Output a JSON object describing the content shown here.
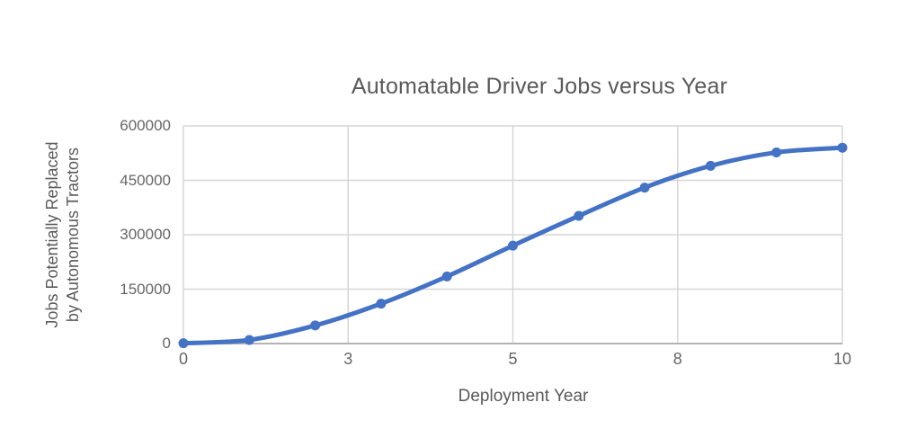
{
  "chart_data": {
    "type": "line",
    "title": "Automatable Driver Jobs versus Year",
    "xlabel": "Deployment Year",
    "ylabel_lines": [
      "Jobs Potentially Replaced",
      "by Autonomous Tractors"
    ],
    "x": [
      0,
      1,
      2,
      3,
      4,
      5,
      6,
      7,
      8,
      9,
      10
    ],
    "series": [
      {
        "name": "Jobs Potentially Replaced by Autonomous Tractors",
        "values": [
          1000,
          10000,
          50000,
          110000,
          185000,
          270000,
          352000,
          430000,
          490000,
          527000,
          540000
        ]
      }
    ],
    "xlim": [
      0,
      10
    ],
    "ylim": [
      0,
      600000
    ],
    "x_ticks": {
      "positions": [
        0,
        2.5,
        5,
        7.5,
        10
      ],
      "labels": [
        "0",
        "3",
        "5",
        "8",
        "10"
      ]
    },
    "y_ticks": {
      "positions": [
        0,
        150000,
        300000,
        450000,
        600000
      ],
      "labels": [
        "0",
        "150000",
        "300000",
        "450000",
        "600000"
      ]
    },
    "grid": true,
    "smooth": true,
    "marker": "circle",
    "legend": "none",
    "colors": {
      "line": "#4472c4",
      "marker": "#4472c4",
      "gridline": "#d6d6d6",
      "axis": "#b3b3b3",
      "title_text": "#595959",
      "tick_text": "#666666"
    }
  }
}
